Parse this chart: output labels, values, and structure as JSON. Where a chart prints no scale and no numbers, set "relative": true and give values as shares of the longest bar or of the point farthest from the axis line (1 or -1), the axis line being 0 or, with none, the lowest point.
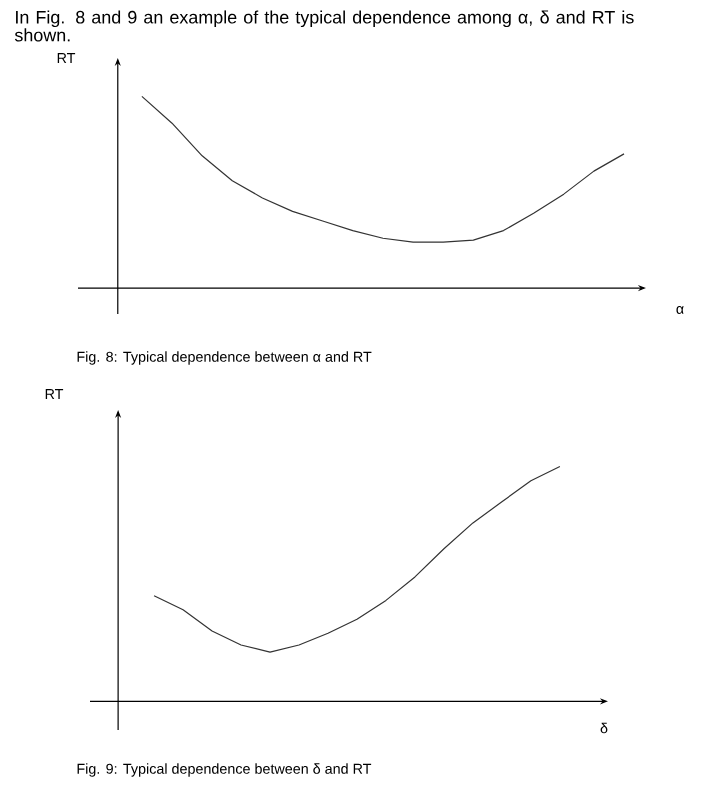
{
  "chart_data": [
    {
      "type": "line",
      "title": "In Fig. 8 and 9 an example of the typical dependence among α, δ and RT is shown.",
      "xlabel": "α",
      "ylabel": "RT",
      "annotations": [
        "Fig. 8: Typical dependence between α and RT"
      ],
      "relative": true,
      "color": "#333333",
      "categories": [
        null,
        null,
        null,
        null,
        null,
        null,
        null,
        null,
        null,
        null,
        null,
        null,
        null,
        null,
        null,
        null,
        null
      ],
      "values": [
        1.0,
        0.86,
        0.69,
        0.56,
        0.47,
        0.4,
        0.35,
        0.3,
        0.26,
        0.24,
        0.24,
        0.25,
        0.3,
        0.39,
        0.49,
        0.61,
        0.7
      ]
    },
    {
      "type": "line",
      "xlabel": "δ",
      "ylabel": "RT",
      "annotations": [
        "Fig. 9: Typical dependence between δ and RT"
      ],
      "relative": true,
      "color": "#333333",
      "categories": [
        null,
        null,
        null,
        null,
        null,
        null,
        null,
        null,
        null,
        null,
        null,
        null,
        null,
        null,
        null
      ],
      "values": [
        0.45,
        0.39,
        0.3,
        0.24,
        0.21,
        0.24,
        0.29,
        0.35,
        0.43,
        0.53,
        0.65,
        0.76,
        0.85,
        0.94,
        1.0
      ]
    }
  ]
}
